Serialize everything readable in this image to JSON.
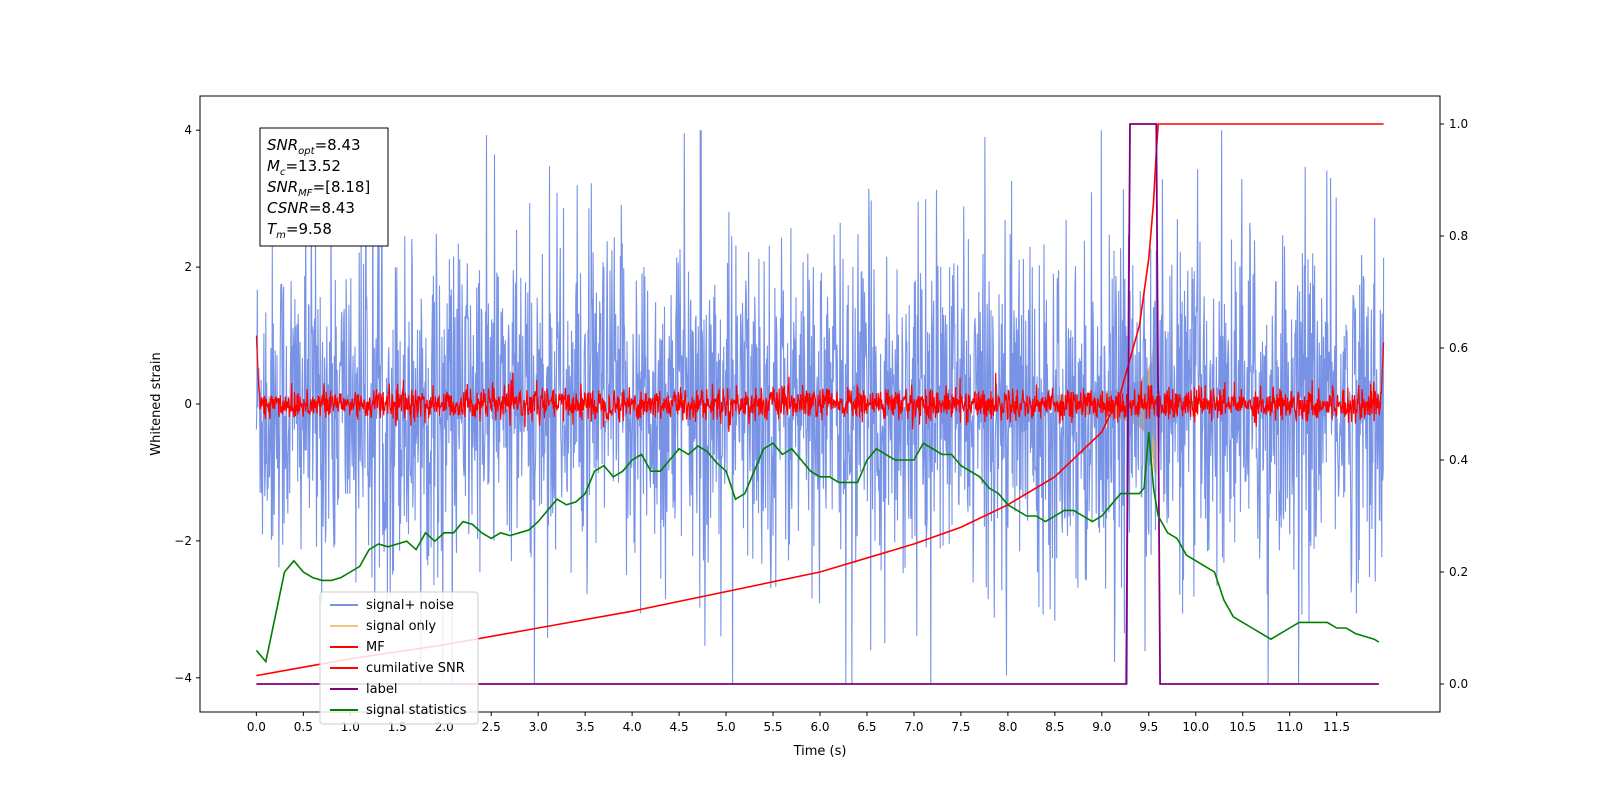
{
  "chart_data": {
    "type": "line",
    "xlabel": "Time (s)",
    "ylabel": "Whitened strain",
    "xlim": [
      -0.6,
      12.6
    ],
    "ylim": [
      -4.5,
      4.5
    ],
    "y2lim": [
      -0.05,
      1.05
    ],
    "x_ticks": [
      "0.0",
      "0.5",
      "1.0",
      "1.5",
      "2.0",
      "2.5",
      "3.0",
      "3.5",
      "4.0",
      "4.5",
      "5.0",
      "5.5",
      "6.0",
      "6.5",
      "7.0",
      "7.5",
      "8.0",
      "8.5",
      "9.0",
      "9.5",
      "10.0",
      "10.5",
      "11.0",
      "11.5"
    ],
    "y_ticks": [
      "4",
      "2",
      "0",
      "−2",
      "−4"
    ],
    "y2_ticks": [
      "1.0",
      "0.8",
      "0.6",
      "0.4",
      "0.2",
      "0.0"
    ],
    "legend_position": "lower-left",
    "annotation": {
      "lines": [
        {
          "sym": "SNR",
          "sub": "opt",
          "value": "=8.43"
        },
        {
          "sym": "M",
          "sub": "c",
          "value": "=13.52"
        },
        {
          "sym": "SNR",
          "sub": "MF",
          "value": "=[8.18]"
        },
        {
          "sym": "CSNR",
          "sub": "",
          "value": "=8.43"
        },
        {
          "sym": "T",
          "sub": "m",
          "value": "=9.58"
        }
      ]
    },
    "series": [
      {
        "name": "signal+ noise",
        "color": "#7893e6",
        "axis": "left",
        "kind": "noise",
        "amplitude": 1.2,
        "x_range": [
          0.0,
          12.0
        ]
      },
      {
        "name": "signal only",
        "color": "#f5c57c",
        "axis": "left",
        "kind": "chirp",
        "merger_time": 9.58,
        "peak_amplitude": 1.0,
        "x_range": [
          8.5,
          9.58
        ]
      },
      {
        "name": "MF",
        "color": "#ff0000",
        "axis": "left",
        "kind": "noise",
        "amplitude": 0.12,
        "x_range": [
          0.0,
          12.0
        ]
      },
      {
        "name": "cumilative SNR",
        "color": "#ff0000",
        "axis": "right",
        "x": [
          0.0,
          0.5,
          1.0,
          2.0,
          3.0,
          4.0,
          5.0,
          6.0,
          7.0,
          7.5,
          8.0,
          8.5,
          9.0,
          9.2,
          9.4,
          9.5,
          9.55,
          9.58,
          9.6,
          12.0
        ],
        "y": [
          0.015,
          0.03,
          0.045,
          0.07,
          0.1,
          0.13,
          0.165,
          0.2,
          0.25,
          0.28,
          0.32,
          0.37,
          0.45,
          0.52,
          0.64,
          0.76,
          0.86,
          0.95,
          1.0,
          1.0
        ]
      },
      {
        "name": "label",
        "color": "#800080",
        "axis": "right",
        "x": [
          0.0,
          9.26,
          9.3,
          9.55,
          9.58,
          9.62,
          11.95
        ],
        "y": [
          0.0,
          0.0,
          1.0,
          1.0,
          1.0,
          0.0,
          0.0
        ]
      },
      {
        "name": "signal statistics",
        "color": "#008000",
        "axis": "right",
        "x": [
          0.0,
          0.1,
          0.2,
          0.3,
          0.4,
          0.5,
          0.6,
          0.7,
          0.8,
          0.9,
          1.0,
          1.1,
          1.2,
          1.3,
          1.4,
          1.5,
          1.6,
          1.7,
          1.8,
          1.9,
          2.0,
          2.1,
          2.2,
          2.3,
          2.4,
          2.5,
          2.6,
          2.7,
          2.8,
          2.9,
          3.0,
          3.1,
          3.2,
          3.3,
          3.4,
          3.5,
          3.6,
          3.7,
          3.8,
          3.9,
          4.0,
          4.1,
          4.2,
          4.3,
          4.4,
          4.5,
          4.6,
          4.7,
          4.8,
          4.9,
          5.0,
          5.1,
          5.2,
          5.3,
          5.4,
          5.5,
          5.6,
          5.7,
          5.8,
          5.9,
          6.0,
          6.1,
          6.2,
          6.3,
          6.4,
          6.5,
          6.6,
          6.7,
          6.8,
          6.9,
          7.0,
          7.1,
          7.2,
          7.3,
          7.4,
          7.5,
          7.6,
          7.7,
          7.8,
          7.9,
          8.0,
          8.1,
          8.2,
          8.3,
          8.4,
          8.5,
          8.6,
          8.7,
          8.8,
          8.9,
          9.0,
          9.1,
          9.2,
          9.3,
          9.4,
          9.45,
          9.5,
          9.55,
          9.6,
          9.7,
          9.8,
          9.9,
          10.0,
          10.1,
          10.2,
          10.3,
          10.4,
          10.5,
          10.6,
          10.7,
          10.8,
          10.9,
          11.0,
          11.1,
          11.2,
          11.3,
          11.4,
          11.5,
          11.6,
          11.7,
          11.8,
          11.9,
          11.95
        ],
        "y": [
          0.06,
          0.04,
          0.12,
          0.2,
          0.22,
          0.2,
          0.19,
          0.185,
          0.185,
          0.19,
          0.2,
          0.21,
          0.24,
          0.25,
          0.245,
          0.25,
          0.255,
          0.24,
          0.27,
          0.255,
          0.27,
          0.27,
          0.29,
          0.285,
          0.27,
          0.26,
          0.27,
          0.265,
          0.27,
          0.275,
          0.29,
          0.31,
          0.33,
          0.32,
          0.325,
          0.34,
          0.38,
          0.39,
          0.37,
          0.38,
          0.4,
          0.41,
          0.38,
          0.38,
          0.4,
          0.42,
          0.41,
          0.425,
          0.415,
          0.395,
          0.38,
          0.33,
          0.34,
          0.38,
          0.42,
          0.43,
          0.41,
          0.42,
          0.4,
          0.38,
          0.37,
          0.37,
          0.36,
          0.36,
          0.36,
          0.4,
          0.42,
          0.41,
          0.4,
          0.4,
          0.4,
          0.43,
          0.42,
          0.41,
          0.41,
          0.39,
          0.38,
          0.37,
          0.35,
          0.34,
          0.32,
          0.31,
          0.3,
          0.3,
          0.29,
          0.3,
          0.31,
          0.31,
          0.3,
          0.29,
          0.3,
          0.32,
          0.34,
          0.34,
          0.34,
          0.35,
          0.45,
          0.35,
          0.3,
          0.27,
          0.26,
          0.23,
          0.22,
          0.21,
          0.2,
          0.15,
          0.12,
          0.11,
          0.1,
          0.09,
          0.08,
          0.09,
          0.1,
          0.11,
          0.11,
          0.11,
          0.11,
          0.1,
          0.1,
          0.09,
          0.085,
          0.08,
          0.075
        ]
      }
    ]
  }
}
